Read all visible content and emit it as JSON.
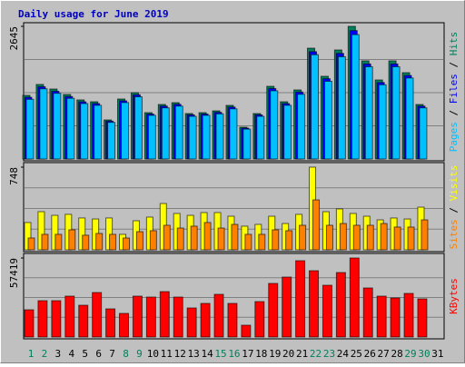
{
  "title": "Daily usage for June 2019",
  "legend_separator": " / ",
  "chart_data": [
    {
      "type": "bar",
      "ylim": [
        0,
        2645
      ],
      "yticks": [
        2645
      ],
      "series": [
        {
          "name": "Hits",
          "color": "#00805C",
          "values": [
            1268,
            1486,
            1395,
            1286,
            1178,
            1141,
            779,
            1196,
            1322,
            924,
            1087,
            1123,
            906,
            924,
            960,
            1069,
            634,
            906,
            1449,
            1141,
            1377,
            2210,
            1649,
            2174,
            2645,
            1957,
            1576,
            1957,
            1721,
            1087,
            0
          ]
        },
        {
          "name": "Files",
          "color": "#0000FF",
          "values": [
            1230,
            1440,
            1350,
            1245,
            1140,
            1105,
            755,
            1160,
            1280,
            895,
            1055,
            1090,
            880,
            895,
            930,
            1035,
            615,
            880,
            1405,
            1105,
            1335,
            2140,
            1600,
            2105,
            2560,
            1895,
            1525,
            1895,
            1665,
            1055,
            0
          ]
        },
        {
          "name": "Pages",
          "color": "#00C0FF",
          "values": [
            1190,
            1400,
            1310,
            1210,
            1105,
            1070,
            730,
            1125,
            1240,
            870,
            1020,
            1055,
            850,
            870,
            900,
            1000,
            595,
            850,
            1360,
            1070,
            1290,
            2080,
            1550,
            2040,
            2480,
            1840,
            1480,
            1840,
            1615,
            1020,
            0
          ]
        }
      ]
    },
    {
      "type": "bar",
      "ylim": [
        0,
        748
      ],
      "yticks": [
        748
      ],
      "series": [
        {
          "name": "Visits",
          "color": "#FFFF00",
          "values": [
            247,
            345,
            312,
            321,
            288,
            279,
            288,
            140,
            263,
            296,
            419,
            329,
            312,
            337,
            337,
            304,
            214,
            230,
            304,
            238,
            321,
            748,
            345,
            370,
            329,
            304,
            271,
            288,
            279,
            386,
            0
          ]
        },
        {
          "name": "Sites",
          "color": "#FF8000",
          "values": [
            107,
            140,
            140,
            181,
            132,
            148,
            140,
            107,
            164,
            173,
            222,
            197,
            214,
            247,
            197,
            230,
            140,
            140,
            181,
            173,
            222,
            452,
            222,
            238,
            222,
            222,
            238,
            206,
            206,
            271,
            0
          ]
        }
      ]
    },
    {
      "type": "bar",
      "ylim": [
        0,
        57419
      ],
      "yticks": [
        57419
      ],
      "categories": [
        "1",
        "2",
        "3",
        "4",
        "5",
        "6",
        "7",
        "8",
        "9",
        "10",
        "11",
        "12",
        "13",
        "14",
        "15",
        "16",
        "17",
        "18",
        "19",
        "20",
        "21",
        "22",
        "23",
        "24",
        "25",
        "26",
        "27",
        "28",
        "29",
        "30",
        "31"
      ],
      "category_colors": [
        "#00805C",
        "#00805C",
        "#000000",
        "#000000",
        "#000000",
        "#000000",
        "#000000",
        "#00805C",
        "#00805C",
        "#000000",
        "#000000",
        "#000000",
        "#000000",
        "#000000",
        "#00805C",
        "#00805C",
        "#000000",
        "#000000",
        "#000000",
        "#000000",
        "#000000",
        "#00805C",
        "#00805C",
        "#000000",
        "#000000",
        "#000000",
        "#000000",
        "#000000",
        "#00805C",
        "#00805C",
        "#000000"
      ],
      "series": [
        {
          "name": "KBytes",
          "color": "#FF0000",
          "values": [
            19800,
            26400,
            26400,
            29700,
            23100,
            32340,
            20460,
            17160,
            29700,
            29040,
            33000,
            29040,
            21120,
            24420,
            31020,
            24420,
            8580,
            25740,
            38940,
            43560,
            55440,
            48180,
            37620,
            46860,
            57419,
            35640,
            29700,
            28380,
            31680,
            27720,
            0
          ]
        }
      ]
    }
  ]
}
